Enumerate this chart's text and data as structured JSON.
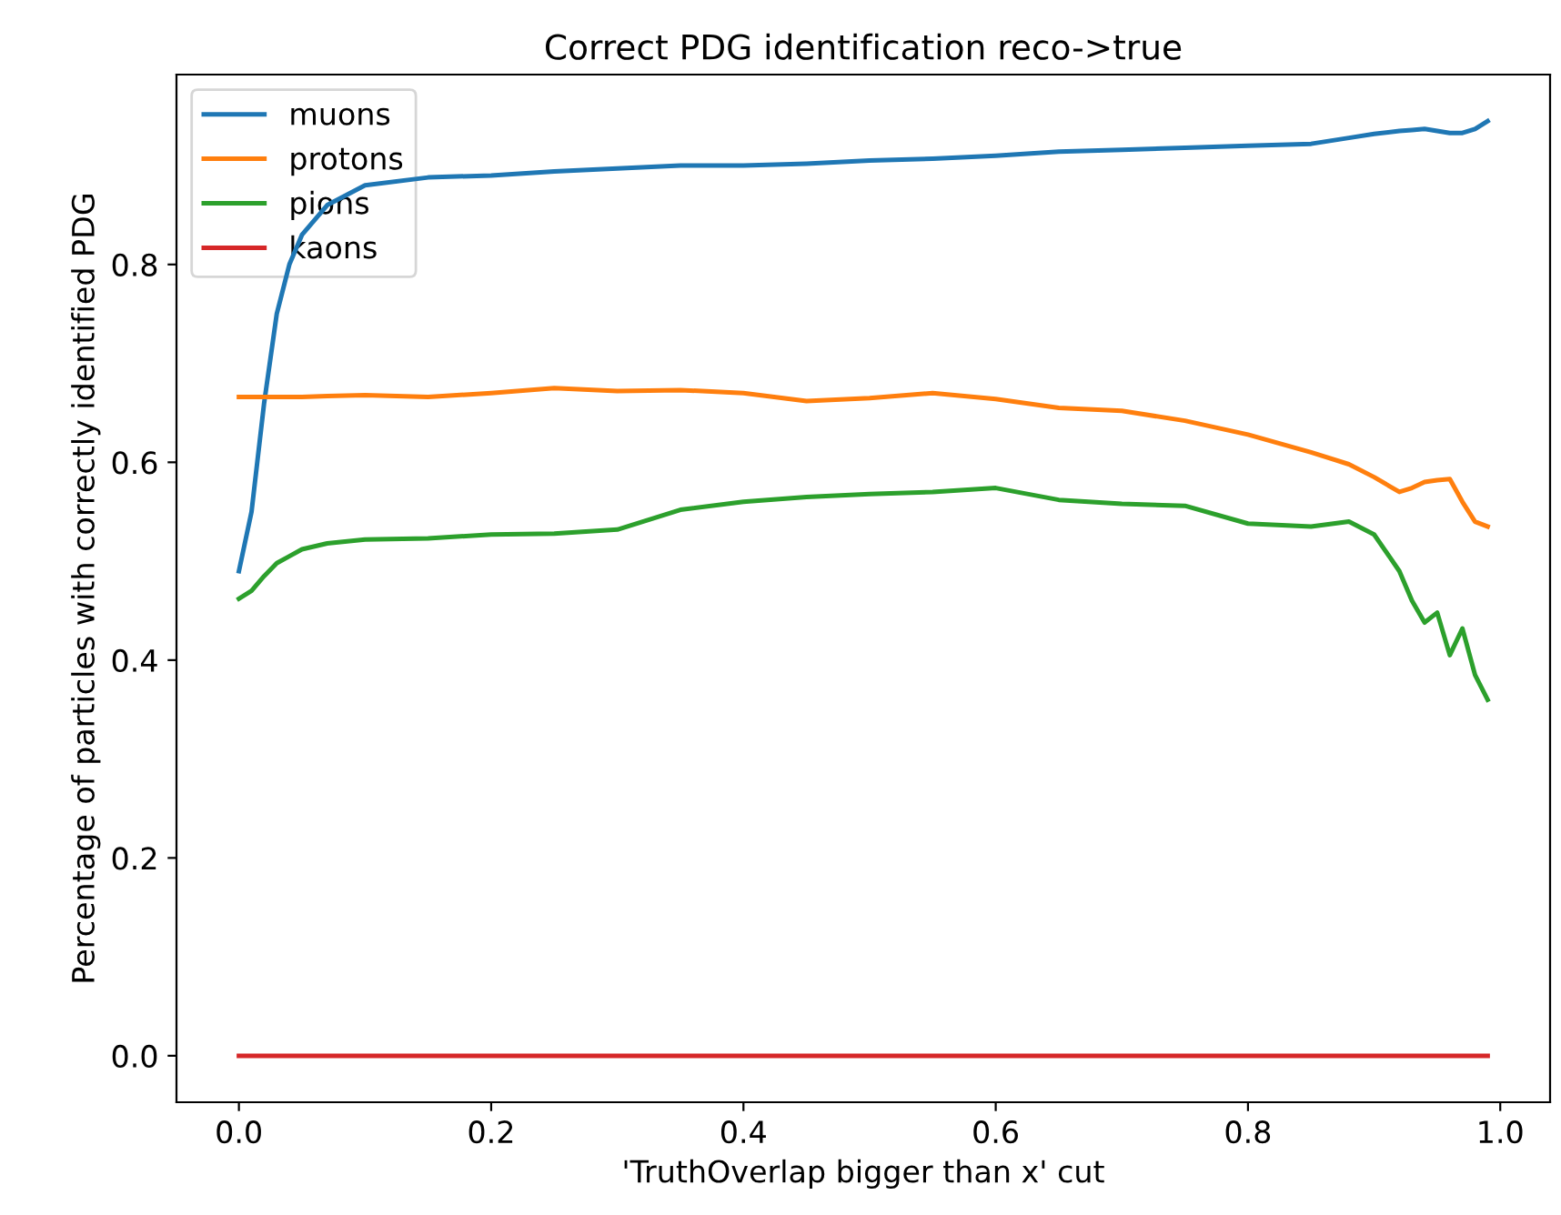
{
  "chart_data": {
    "type": "line",
    "title": "Correct PDG identification reco->true",
    "xlabel": "'TruthOverlap bigger than x' cut",
    "ylabel": "Percentage of particles with correctly identified PDG",
    "x": [
      0,
      0.01,
      0.02,
      0.03,
      0.04,
      0.05,
      0.07,
      0.1,
      0.15,
      0.2,
      0.25,
      0.3,
      0.35,
      0.4,
      0.45,
      0.5,
      0.55,
      0.6,
      0.65,
      0.7,
      0.75,
      0.8,
      0.85,
      0.88,
      0.9,
      0.92,
      0.93,
      0.94,
      0.95,
      0.96,
      0.97,
      0.98,
      0.99
    ],
    "series": [
      {
        "name": "muons",
        "color": "#1f77b4",
        "values": [
          0.49,
          0.55,
          0.66,
          0.75,
          0.8,
          0.83,
          0.86,
          0.88,
          0.888,
          0.89,
          0.894,
          0.897,
          0.9,
          0.9,
          0.902,
          0.905,
          0.907,
          0.91,
          0.914,
          0.916,
          0.918,
          0.92,
          0.922,
          0.928,
          0.932,
          0.935,
          0.936,
          0.937,
          0.935,
          0.933,
          0.933,
          0.937,
          0.945
        ]
      },
      {
        "name": "protons",
        "color": "#ff7f0e",
        "values": [
          0.666,
          0.666,
          0.666,
          0.666,
          0.666,
          0.666,
          0.667,
          0.668,
          0.666,
          0.67,
          0.675,
          0.672,
          0.673,
          0.67,
          0.662,
          0.665,
          0.67,
          0.664,
          0.655,
          0.652,
          0.642,
          0.628,
          0.61,
          0.598,
          0.585,
          0.57,
          0.574,
          0.58,
          0.582,
          0.583,
          0.56,
          0.54,
          0.535
        ]
      },
      {
        "name": "pions",
        "color": "#2ca02c",
        "values": [
          0.462,
          0.47,
          0.485,
          0.498,
          0.505,
          0.512,
          0.518,
          0.522,
          0.523,
          0.527,
          0.528,
          0.532,
          0.552,
          0.56,
          0.565,
          0.568,
          0.57,
          0.574,
          0.562,
          0.558,
          0.556,
          0.538,
          0.535,
          0.54,
          0.527,
          0.49,
          0.46,
          0.438,
          0.448,
          0.405,
          0.432,
          0.385,
          0.36
        ]
      },
      {
        "name": "kaons",
        "color": "#d62728",
        "values": [
          0,
          0,
          0,
          0,
          0,
          0,
          0,
          0,
          0,
          0,
          0,
          0,
          0,
          0,
          0,
          0,
          0,
          0,
          0,
          0,
          0,
          0,
          0,
          0,
          0,
          0,
          0,
          0,
          0,
          0,
          0,
          0,
          0
        ]
      }
    ],
    "xlim": [
      -0.0495,
      1.0395
    ],
    "ylim": [
      -0.047,
      0.992
    ],
    "xticks": [
      {
        "value": 0,
        "label": "0.0"
      },
      {
        "value": 0.2,
        "label": "0.2"
      },
      {
        "value": 0.4,
        "label": "0.4"
      },
      {
        "value": 0.6,
        "label": "0.6"
      },
      {
        "value": 0.8,
        "label": "0.8"
      },
      {
        "value": 1.0,
        "label": "1.0"
      }
    ],
    "yticks": [
      {
        "value": 0,
        "label": "0.0"
      },
      {
        "value": 0.2,
        "label": "0.2"
      },
      {
        "value": 0.4,
        "label": "0.4"
      },
      {
        "value": 0.6,
        "label": "0.6"
      },
      {
        "value": 0.8,
        "label": "0.8"
      }
    ],
    "legend": "top left",
    "grid": false
  }
}
